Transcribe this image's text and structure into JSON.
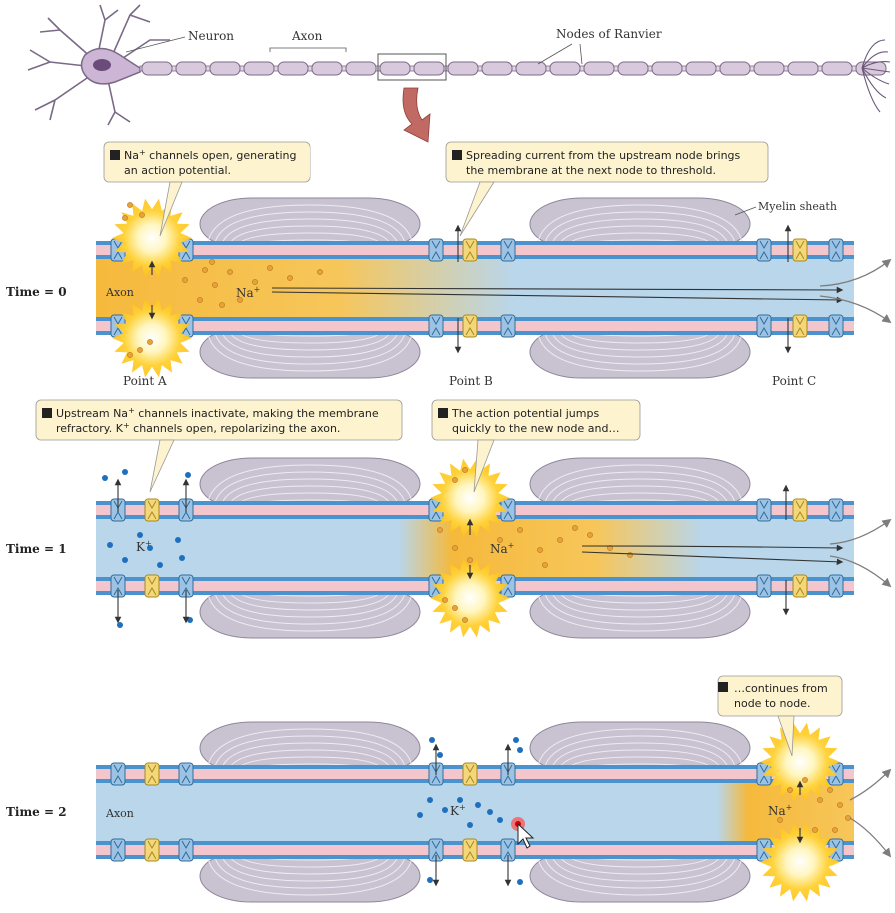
{
  "labels": {
    "neuron": "Neuron",
    "axon_top": "Axon",
    "nodes": "Nodes of Ranvier",
    "myelin": "Myelin sheath",
    "point_a": "Point A",
    "point_b": "Point B",
    "point_c": "Point C",
    "axon_inside": "Axon"
  },
  "ions": {
    "na": "Na",
    "k": "K",
    "plus": "+"
  },
  "rows": [
    {
      "time": "Time = 0"
    },
    {
      "time": "Time = 1"
    },
    {
      "time": "Time = 2"
    }
  ],
  "callouts": {
    "c1": {
      "line1_a": "Na",
      "line1_sup": "+",
      "line1_b": " channels open, generating",
      "line2": "an action potential."
    },
    "c2": {
      "line1": "Spreading current from the upstream node brings",
      "line2": "the membrane at the next node to threshold."
    },
    "c3": {
      "line1_a": "Upstream Na",
      "line1_sup": "+",
      "line1_b": " channels inactivate, making the membrane",
      "line2_a": "refractory. K",
      "line2_sup": "+",
      "line2_b": " channels open, repolarizing the axon."
    },
    "c4": {
      "line1": "The action potential jumps",
      "line2": "quickly to the new node and…"
    },
    "c5": {
      "line1": "…continues from",
      "line2": "node to node."
    }
  },
  "colors": {
    "axon_fill": "#b9d6ea",
    "membrane_blue": "#4b93cf",
    "membrane_pink": "#f3c6cd",
    "myelin": "#c9c3d1",
    "myelin_stroke": "#8f869a",
    "na_ion": "#e8a23a",
    "k_ion": "#1f6fbf",
    "glow": "#ffd23a",
    "callout_fill": "#fdf3cf",
    "channel_blue": "#9cc3e4",
    "channel_yellow": "#f3d77a"
  }
}
